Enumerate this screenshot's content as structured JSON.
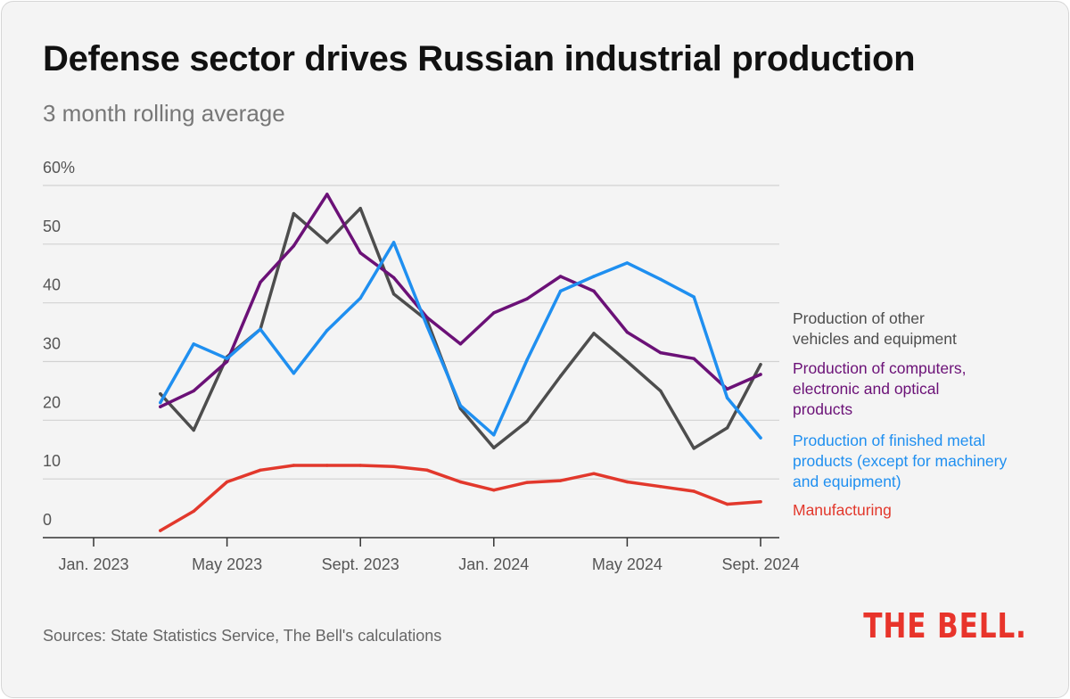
{
  "header": {
    "title": "Defense sector drives Russian industrial production",
    "subtitle": "3 month rolling average"
  },
  "footer": {
    "source": "Sources: State Statistics Service, The Bell's calculations",
    "logo": "THE BELL."
  },
  "chart_data": {
    "type": "line",
    "title": "Defense sector drives Russian industrial production",
    "subtitle": "3 month rolling average",
    "xlabel": "",
    "ylabel": "",
    "y_unit": "%",
    "ylim": [
      0,
      60
    ],
    "y_ticks": [
      0,
      10,
      20,
      30,
      40,
      50,
      60
    ],
    "y_tick_labels": [
      "0",
      "10",
      "20",
      "30",
      "40",
      "50",
      "60%"
    ],
    "x": [
      "2023-03",
      "2023-04",
      "2023-05",
      "2023-06",
      "2023-07",
      "2023-08",
      "2023-09",
      "2023-10",
      "2023-11",
      "2023-12",
      "2024-01",
      "2024-02",
      "2024-03",
      "2024-04",
      "2024-05",
      "2024-06",
      "2024-07",
      "2024-08",
      "2024-09"
    ],
    "x_ticks": [
      "2023-01",
      "2023-05",
      "2023-09",
      "2024-01",
      "2024-05",
      "2024-09"
    ],
    "x_tick_labels": [
      "Jan. 2023",
      "May 2023",
      "Sept. 2023",
      "Jan. 2024",
      "May 2024",
      "Sept. 2024"
    ],
    "grid": true,
    "legend": "right, labels at line ends",
    "series": [
      {
        "name": "Production of other vehicles and equipment",
        "color": "#4d4d4d",
        "values": [
          24.5,
          18.3,
          30.8,
          35.5,
          55.2,
          50.3,
          56.1,
          41.5,
          37.0,
          22.0,
          15.3,
          19.8,
          27.5,
          34.8,
          30.0,
          25.0,
          15.2,
          18.7,
          29.5
        ]
      },
      {
        "name": "Production of computers, electronic and optical products",
        "color": "#6b1177",
        "values": [
          22.3,
          25.0,
          30.0,
          43.5,
          49.7,
          58.5,
          48.5,
          44.3,
          37.5,
          33.0,
          38.3,
          40.7,
          44.5,
          42.0,
          35.0,
          31.5,
          30.5,
          25.3,
          27.8
        ]
      },
      {
        "name": "Production of finished metal products (except for machinery and equipment)",
        "color": "#1f8ff0",
        "values": [
          23.0,
          33.0,
          30.5,
          35.5,
          28.0,
          35.3,
          40.8,
          50.3,
          36.0,
          22.5,
          17.5,
          30.3,
          42.0,
          44.5,
          46.8,
          44.0,
          41.0,
          23.8,
          17.0
        ]
      },
      {
        "name": "Manufacturing",
        "color": "#e2382c",
        "values": [
          1.2,
          4.5,
          9.5,
          11.5,
          12.3,
          12.3,
          12.3,
          12.1,
          11.5,
          9.5,
          8.1,
          9.4,
          9.7,
          10.9,
          9.5,
          8.7,
          7.9,
          5.7,
          6.1
        ]
      }
    ]
  }
}
